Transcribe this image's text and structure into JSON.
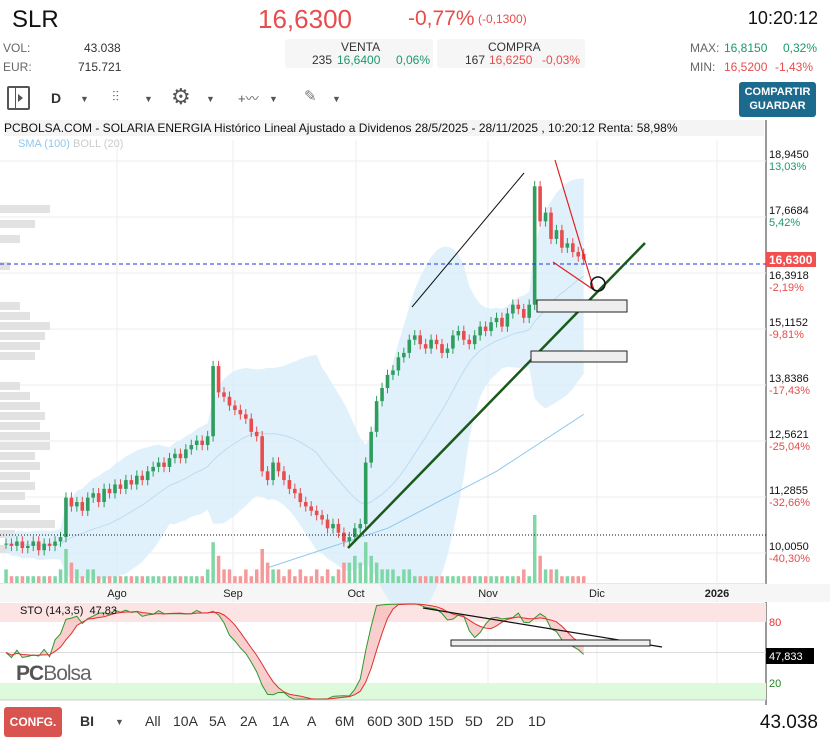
{
  "header": {
    "ticker": "SLR",
    "price": "16,6300",
    "change_pct": "-0,77%",
    "change_abs": "(-0,1300)",
    "time": "10:20:12"
  },
  "stats": {
    "vol_label": "VOL:",
    "vol": "43.038",
    "eur_label": "EUR:",
    "eur": "715.721",
    "venta": {
      "label": "VENTA",
      "qty": "235",
      "price": "16,6400",
      "pct": "0,06%"
    },
    "compra": {
      "label": "COMPRA",
      "qty": "167",
      "price": "16,6250",
      "pct": "-0,03%"
    },
    "max_label": "MAX:",
    "max": "16,8150",
    "max_pct": "0,32%",
    "min_label": "MIN:",
    "min": "16,5200",
    "min_pct": "-1,43%"
  },
  "toolbar": {
    "period": "D",
    "share_label": "COMPARTIR",
    "save_label": "GUARDAR"
  },
  "chart_title": "PCBOLSA.COM - SOLARIA ENERGIA Histórico Lineal Ajustado a Dividenos 28/5/2025 - 28/11/2025 , 10:20:12 Renta: 58,98%",
  "indicators": {
    "sma": "SMA (100)",
    "boll": "BOLL (20)"
  },
  "colors": {
    "up": "#2e9e5e",
    "down": "#e84c4c",
    "band": "#d6ecfa",
    "accent": "#1c6b8f"
  },
  "chart_data": {
    "type": "candlestick",
    "y_ticks": [
      {
        "v": "18,9450",
        "p": "13,03%"
      },
      {
        "v": "17,6684",
        "p": "5,42%"
      },
      {
        "v": "16,3918",
        "p": "-2,19%"
      },
      {
        "v": "15,1152",
        "p": "-9,81%"
      },
      {
        "v": "13,8386",
        "p": "-17,43%"
      },
      {
        "v": "12,5621",
        "p": "-25,04%"
      },
      {
        "v": "11,2855",
        "p": "-32,66%"
      },
      {
        "v": "10,0050",
        "p": "-40,30%"
      }
    ],
    "current_price_label": "16,6300",
    "x_ticks": [
      "Ago",
      "Sep",
      "Oct",
      "Nov",
      "Dic",
      "2026"
    ],
    "closes": [
      10.15,
      10.1,
      10.2,
      10.05,
      10.1,
      10.2,
      10.0,
      10.15,
      10.1,
      10.2,
      10.3,
      11.2,
      11.0,
      11.1,
      10.9,
      11.2,
      11.3,
      11.1,
      11.4,
      11.3,
      11.5,
      11.4,
      11.6,
      11.5,
      11.7,
      11.6,
      11.8,
      11.9,
      12.0,
      11.9,
      12.1,
      12.2,
      12.1,
      12.3,
      12.4,
      12.5,
      12.4,
      12.6,
      14.2,
      13.6,
      13.5,
      13.3,
      13.2,
      13.1,
      13.0,
      12.7,
      12.6,
      11.8,
      11.6,
      12.0,
      11.8,
      11.6,
      11.4,
      11.3,
      11.1,
      11.0,
      10.9,
      10.8,
      10.7,
      10.5,
      10.6,
      10.4,
      10.2,
      10.3,
      10.5,
      10.6,
      12.0,
      12.7,
      13.4,
      13.7,
      14.0,
      14.1,
      14.4,
      14.5,
      14.8,
      14.9,
      14.7,
      14.6,
      14.8,
      14.7,
      14.5,
      14.6,
      14.9,
      15.0,
      14.8,
      14.7,
      14.9,
      15.1,
      15.0,
      15.2,
      15.3,
      15.1,
      15.4,
      15.6,
      15.5,
      15.3,
      15.6,
      18.3,
      17.5,
      17.7,
      17.1,
      17.3,
      16.9,
      17.0,
      16.8,
      16.7,
      16.63
    ],
    "last_open": 16.76,
    "volumes": [
      2,
      1,
      1,
      1,
      1,
      1,
      1,
      1,
      1,
      1,
      2,
      5,
      3,
      2,
      1,
      2,
      2,
      1,
      1,
      1,
      1,
      1,
      1,
      1,
      1,
      1,
      1,
      1,
      1,
      1,
      1,
      1,
      1,
      1,
      1,
      1,
      1,
      2,
      6,
      4,
      2,
      2,
      1,
      1,
      2,
      1,
      2,
      5,
      3,
      2,
      2,
      1,
      2,
      1,
      2,
      1,
      1,
      2,
      1,
      2,
      1,
      2,
      3,
      3,
      4,
      3,
      6,
      4,
      3,
      2,
      2,
      2,
      1,
      2,
      2,
      1,
      1,
      1,
      1,
      1,
      1,
      1,
      1,
      1,
      1,
      1,
      1,
      1,
      1,
      1,
      1,
      1,
      1,
      1,
      1,
      2,
      1,
      10,
      4,
      2,
      2,
      2,
      1,
      1,
      1,
      1,
      1
    ],
    "sma_100": [
      [
        48,
        9.6
      ],
      [
        70,
        10.5
      ],
      [
        90,
        11.8
      ],
      [
        106,
        13.1
      ]
    ],
    "sto": {
      "label": "STO (14,3,5)",
      "value": "47,83",
      "axis_value": "47,833",
      "levels": [
        "80",
        "20"
      ]
    }
  },
  "footer": {
    "config": "CONFG.",
    "bi": "BI",
    "ranges": [
      "All",
      "10A",
      "5A",
      "2A",
      "1A",
      "A",
      "6M",
      "60D",
      "30D",
      "15D",
      "5D",
      "2D",
      "1D"
    ],
    "volume": "43.038"
  },
  "logo": "PCBolsa"
}
